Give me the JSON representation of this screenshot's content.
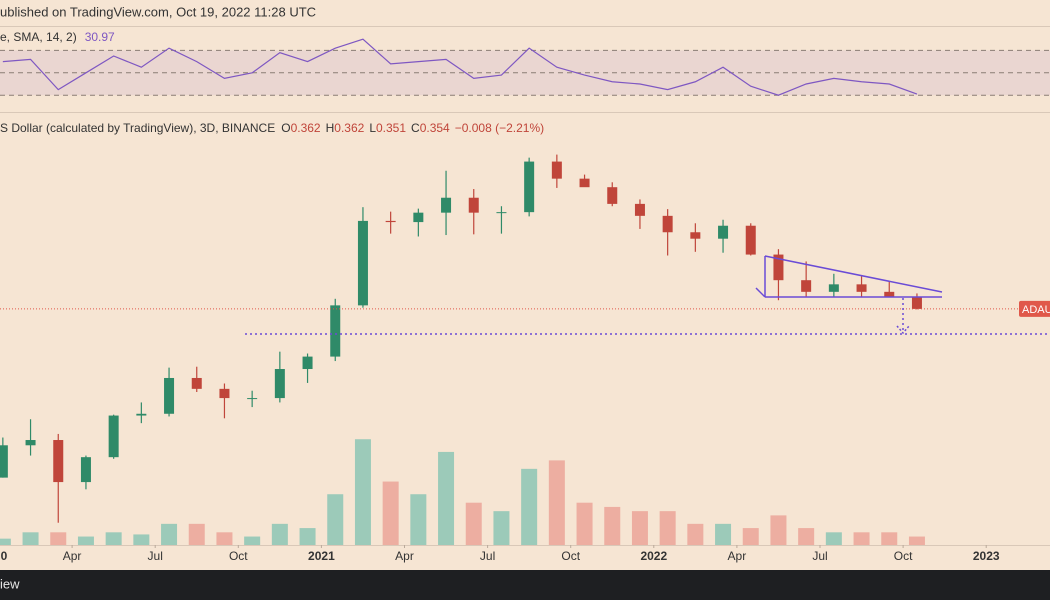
{
  "top_bar": {
    "text": "ublished on TradingView.com, Oct 19, 2022 11:28 UTC"
  },
  "bottom_bar": {
    "text": "iew"
  },
  "chart_data": [
    {
      "type": "line",
      "title": "e, SMA, 14, 2)",
      "last_value": 30.97,
      "color": "#7e57c2",
      "x": [
        "2020-01",
        "2020-02",
        "2020-03",
        "2020-04",
        "2020-05",
        "2020-06",
        "2020-07",
        "2020-08",
        "2020-09",
        "2020-10",
        "2020-11",
        "2020-12",
        "2021-01",
        "2021-02",
        "2021-03",
        "2021-04",
        "2021-05",
        "2021-06",
        "2021-07",
        "2021-08",
        "2021-09",
        "2021-10",
        "2021-11",
        "2021-12",
        "2022-01",
        "2022-02",
        "2022-03",
        "2022-04",
        "2022-05",
        "2022-06",
        "2022-07",
        "2022-08",
        "2022-09",
        "2022-10"
      ],
      "values": [
        60,
        62,
        35,
        50,
        65,
        55,
        72,
        60,
        45,
        50,
        68,
        60,
        72,
        80,
        58,
        60,
        62,
        45,
        48,
        72,
        55,
        48,
        42,
        40,
        35,
        42,
        55,
        38,
        30,
        40,
        45,
        42,
        40,
        30.97
      ],
      "xlim": [
        "2020-01",
        "2023-03"
      ],
      "ylim": [
        15,
        90
      ],
      "levels": [
        30,
        50,
        70
      ]
    },
    {
      "type": "candlestick",
      "title": "S Dollar (calculated by TradingView), 3D, BINANCE",
      "legend": [
        {
          "label": "O",
          "value": 0.362
        },
        {
          "label": "H",
          "value": 0.362
        },
        {
          "label": "L",
          "value": 0.351
        },
        {
          "label": "C",
          "value": 0.354
        }
      ],
      "change": "−0.008 (−2.21%)",
      "x": [
        "2020-01",
        "2020-02",
        "2020-03",
        "2020-04",
        "2020-05",
        "2020-06",
        "2020-07",
        "2020-08",
        "2020-09",
        "2020-10",
        "2020-11",
        "2020-12",
        "2021-01",
        "2021-02",
        "2021-03",
        "2021-04",
        "2021-05",
        "2021-06",
        "2021-07",
        "2021-08",
        "2021-09",
        "2021-10",
        "2021-11",
        "2021-12",
        "2022-01",
        "2022-02",
        "2022-03",
        "2022-04",
        "2022-05",
        "2022-06",
        "2022-07",
        "2022-08",
        "2022-09",
        "2022-10"
      ],
      "open": [
        0.033,
        0.052,
        0.056,
        0.031,
        0.044,
        0.079,
        0.081,
        0.134,
        0.115,
        0.101,
        0.101,
        0.152,
        0.181,
        0.372,
        1.22,
        1.2,
        1.37,
        1.69,
        1.37,
        1.38,
        2.81,
        2.21,
        1.96,
        1.55,
        1.31,
        1.04,
        0.95,
        1.14,
        0.76,
        0.53,
        0.45,
        0.5,
        0.45,
        0.42
      ],
      "high": [
        0.058,
        0.075,
        0.061,
        0.045,
        0.08,
        0.095,
        0.155,
        0.157,
        0.124,
        0.112,
        0.194,
        0.189,
        0.408,
        1.48,
        1.39,
        1.45,
        2.47,
        1.91,
        1.5,
        2.97,
        3.1,
        2.34,
        2.1,
        1.65,
        1.44,
        1.18,
        1.24,
        1.18,
        0.82,
        0.69,
        0.58,
        0.56,
        0.52,
        0.44
      ],
      "low": [
        0.033,
        0.045,
        0.0175,
        0.028,
        0.043,
        0.071,
        0.078,
        0.11,
        0.076,
        0.089,
        0.095,
        0.125,
        0.17,
        0.36,
        1.02,
        0.98,
        1.0,
        1.01,
        1.02,
        1.3,
        1.94,
        1.97,
        1.5,
        1.09,
        0.75,
        0.79,
        0.78,
        0.75,
        0.4,
        0.42,
        0.42,
        0.42,
        0.42,
        0.351
      ],
      "close": [
        0.052,
        0.056,
        0.031,
        0.044,
        0.079,
        0.081,
        0.134,
        0.115,
        0.101,
        0.101,
        0.152,
        0.181,
        0.372,
        1.22,
        1.2,
        1.37,
        1.69,
        1.37,
        1.38,
        2.81,
        2.21,
        1.96,
        1.55,
        1.31,
        1.04,
        0.95,
        1.14,
        0.76,
        0.53,
        0.45,
        0.5,
        0.45,
        0.42,
        0.354
      ],
      "volume": [
        1.5,
        3,
        3,
        2,
        3,
        2.5,
        5,
        5,
        3,
        2,
        5,
        4,
        12,
        25,
        15,
        12,
        22,
        10,
        8,
        18,
        20,
        10,
        9,
        8,
        8,
        5,
        5,
        4,
        7,
        4,
        3,
        3,
        3,
        2
      ],
      "up_color": "#2f8a68",
      "down_color": "#c0453a",
      "volume_up_color": "#8cc6b4",
      "volume_down_color": "#eba598",
      "log_scale": true,
      "xlim": [
        "2020-01",
        "2023-03"
      ],
      "ylim": [
        0.0158,
        4.7
      ],
      "vlim": [
        0,
        26
      ],
      "price_label": "ADAU",
      "price_line_color": "#e0584a",
      "xticks": [
        {
          "value": "2020-01",
          "label": "0"
        },
        {
          "value": "2020-04",
          "label": "Apr"
        },
        {
          "value": "2020-07",
          "label": "Jul"
        },
        {
          "value": "2020-10",
          "label": "Oct"
        },
        {
          "value": "2021-01",
          "label": "2021"
        },
        {
          "value": "2021-04",
          "label": "Apr"
        },
        {
          "value": "2021-07",
          "label": "Jul"
        },
        {
          "value": "2021-10",
          "label": "Oct"
        },
        {
          "value": "2022-01",
          "label": "2022"
        },
        {
          "value": "2022-04",
          "label": "Apr"
        },
        {
          "value": "2022-07",
          "label": "Jul"
        },
        {
          "value": "2022-10",
          "label": "Oct"
        },
        {
          "value": "2023-01",
          "label": "2023"
        }
      ]
    }
  ]
}
